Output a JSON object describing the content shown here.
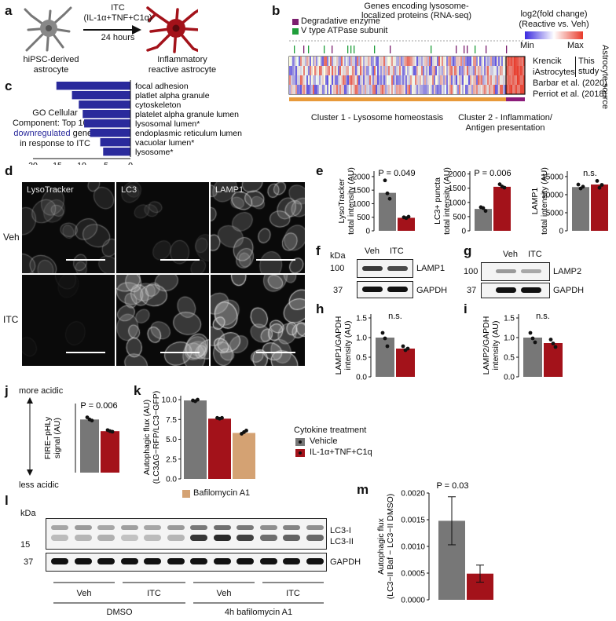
{
  "panel_letters": [
    "a",
    "b",
    "c",
    "d",
    "e",
    "f",
    "g",
    "h",
    "i",
    "j",
    "k",
    "l",
    "m"
  ],
  "a": {
    "label_top": "ITC",
    "label_mid": "(IL-1α+TNF+C1q)",
    "label_time": "24 hours",
    "left_caption_1": "hiPSC-derived",
    "left_caption_2": "astrocyte",
    "right_caption_1": "Inflammatory",
    "right_caption_2": "reactive astrocyte",
    "colors": {
      "resting": "#777777",
      "reactive": "#a3121a"
    }
  },
  "b": {
    "title_1": "Genes encoding lysosome-",
    "title_2": "localized proteins (RNA-seq)",
    "legend_degradative": "Degradative enzyme",
    "legend_atpase": "V type ATPase subunit",
    "scale_title_1": "log2(fold change)",
    "scale_title_2": "(Reactive vs. Veh)",
    "scale_min": "Min",
    "scale_max": "Max",
    "rows": [
      "Krencik",
      "iAstrocytes",
      "Barbar et al. (2020)",
      "Perriot et al. (2018)"
    ],
    "this_study": "This study",
    "source_label": "Astrocyte source",
    "cluster1": "Cluster 1 - Lysosome homeostasis",
    "cluster2_1": "Cluster 2 - Inflammation/",
    "cluster2_2": "Antigen presentation",
    "colors": {
      "degradative": "#7b1f6e",
      "atpase": "#1f9e3a",
      "cluster1": "#e89a3a",
      "cluster2": "#8c1c7a"
    }
  },
  "c": {
    "text_1": "GO Cellular",
    "text_2": "Component: Top 1000",
    "text_3": "downregulated",
    "text_3b": "genes",
    "text_4": "in response to ITC",
    "xaxis": "−log10(Padj)",
    "xticks": [
      "20",
      "15",
      "10",
      "5",
      "0"
    ],
    "bar_color": "#2a2a9c",
    "terms": [
      {
        "name": "focal adhesion",
        "value": 15.2
      },
      {
        "name": "platlet alpha granule",
        "value": 12.0
      },
      {
        "name": "cytoskeleton",
        "value": 10.6
      },
      {
        "name": "platelet alpha granule lumen",
        "value": 9.8
      },
      {
        "name": "lysosomal lumen*",
        "value": 9.5
      },
      {
        "name": "endoplasmic reticulum lumen",
        "value": 8.3
      },
      {
        "name": "vacuolar lumen*",
        "value": 6.2
      },
      {
        "name": "lysosome*",
        "value": 5.6
      }
    ]
  },
  "d": {
    "columns": [
      "LysoTracker",
      "LC3",
      "LAMP1"
    ],
    "rows": [
      "Veh",
      "ITC"
    ]
  },
  "e": {
    "charts": [
      {
        "ylabel_1": "LysoTracker",
        "ylabel_2": "total intensity (AU)",
        "p": "P = 0.049",
        "yticks": [
          "0",
          "500",
          "1000",
          "1500",
          "2000"
        ],
        "ymax": 2200,
        "veh": 1400,
        "itc": 480,
        "veh_pts": [
          1860,
          1380,
          1180
        ],
        "itc_pts": [
          500,
          470,
          520
        ]
      },
      {
        "ylabel_1": "LC3+ puncta",
        "ylabel_2": "total intensity (AU)",
        "p": "P = 0.006",
        "yticks": [
          "0",
          "500",
          "1000",
          "1500",
          "2000"
        ],
        "ymax": 2100,
        "veh": 770,
        "itc": 1550,
        "veh_pts": [
          830,
          800,
          700
        ],
        "itc_pts": [
          1640,
          1560,
          1520
        ]
      },
      {
        "ylabel_1": "LAMP1",
        "ylabel_2": "total intensity (AU)",
        "p": "n.s.",
        "yticks": [
          "0",
          "5000",
          "10000",
          "15000"
        ],
        "ymax": 16500,
        "veh": 12100,
        "itc": 12800,
        "veh_pts": [
          12800,
          11700,
          12200
        ],
        "itc_pts": [
          13800,
          11900,
          12700
        ]
      }
    ]
  },
  "f": {
    "kda": "kDa",
    "lanes": [
      "Veh",
      "ITC"
    ],
    "marker_top": "100",
    "marker_bottom": "37",
    "protein": "LAMP1",
    "loading": "GAPDH"
  },
  "g": {
    "lanes": [
      "Veh",
      "ITC"
    ],
    "marker_top": "100",
    "marker_bottom": "37",
    "protein": "LAMP2",
    "loading": "GAPDH"
  },
  "h": {
    "ylabel_1": "LAMP1/GAPDH",
    "ylabel_2": "intensity (AU)",
    "p": "n.s.",
    "yticks": [
      "0.0",
      "0.5",
      "1.0",
      "1.5"
    ],
    "ymax": 1.6,
    "veh": 1.0,
    "itc": 0.72,
    "veh_pts": [
      1.12,
      0.98,
      0.78
    ],
    "itc_pts": [
      0.78,
      0.68,
      0.72
    ]
  },
  "i": {
    "ylabel_1": "LAMP2/GAPDH",
    "ylabel_2": "intensity (AU)",
    "p": "n.s.",
    "yticks": [
      "0.0",
      "0.5",
      "1.0",
      "1.5"
    ],
    "ymax": 1.6,
    "veh": 1.0,
    "itc": 0.86,
    "veh_pts": [
      1.12,
      0.98,
      0.88
    ],
    "itc_pts": [
      0.95,
      0.85,
      0.76
    ]
  },
  "j": {
    "top": "more acidic",
    "bottom": "less acidic",
    "ylabel_1": "FIRE−pHLy",
    "ylabel_2": "signal (AU)",
    "p": "P = 0.006",
    "veh": 1.0,
    "itc": 0.78,
    "ymax": 1.3,
    "veh_pts": [
      1.04,
      1.0,
      0.98
    ],
    "itc_pts": [
      0.8,
      0.78,
      0.77
    ]
  },
  "k": {
    "ylabel_1": "Autophagic flux (AU)",
    "ylabel_2": "(LC3ΔG−RFP/LC3−GFP)",
    "yticks": [
      "0.0",
      "2.5",
      "5.0",
      "7.5",
      "10.0"
    ],
    "ymax": 10.5,
    "values": [
      9.9,
      7.6,
      5.8
    ],
    "pts": [
      [
        9.9,
        9.8,
        10.0
      ],
      [
        7.7,
        7.6,
        7.7
      ],
      [
        5.7,
        5.9,
        6.1
      ]
    ],
    "legend_baf": "Bafilomycin A1",
    "colors": {
      "veh": "#777777",
      "itc": "#a3121a",
      "baf": "#d4a273"
    }
  },
  "legend": {
    "title": "Cytokine treatment",
    "items": [
      "Vehicle",
      "IL-1α+TNF+C1q"
    ]
  },
  "l": {
    "kda": "kDa",
    "marker_15": "15",
    "marker_37": "37",
    "bands": [
      "LC3-I",
      "LC3-II"
    ],
    "loading": "GAPDH",
    "groups": [
      "Veh",
      "ITC",
      "Veh",
      "ITC"
    ],
    "treatments": [
      "DMSO",
      "4h bafilomycin A1"
    ]
  },
  "m": {
    "ylabel_1": "Autophagic flux",
    "ylabel_2": "(LC3−II Baf − LC3−II DMSO)",
    "p": "P = 0.03",
    "yticks": [
      "0.0000",
      "0.0005",
      "0.0010",
      "0.0015",
      "0.0020"
    ],
    "ymax": 0.002,
    "veh": 0.00148,
    "itc": 0.00049,
    "veh_err": 0.00045,
    "itc_err": 0.00016
  }
}
